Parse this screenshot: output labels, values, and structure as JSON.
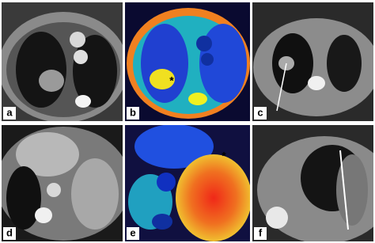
{
  "panels": [
    {
      "label": "a"
    },
    {
      "label": "b"
    },
    {
      "label": "c"
    },
    {
      "label": "d"
    },
    {
      "label": "e"
    },
    {
      "label": "f"
    }
  ],
  "annotations": [
    {
      "text": "*"
    },
    {
      "text": "*"
    }
  ]
}
